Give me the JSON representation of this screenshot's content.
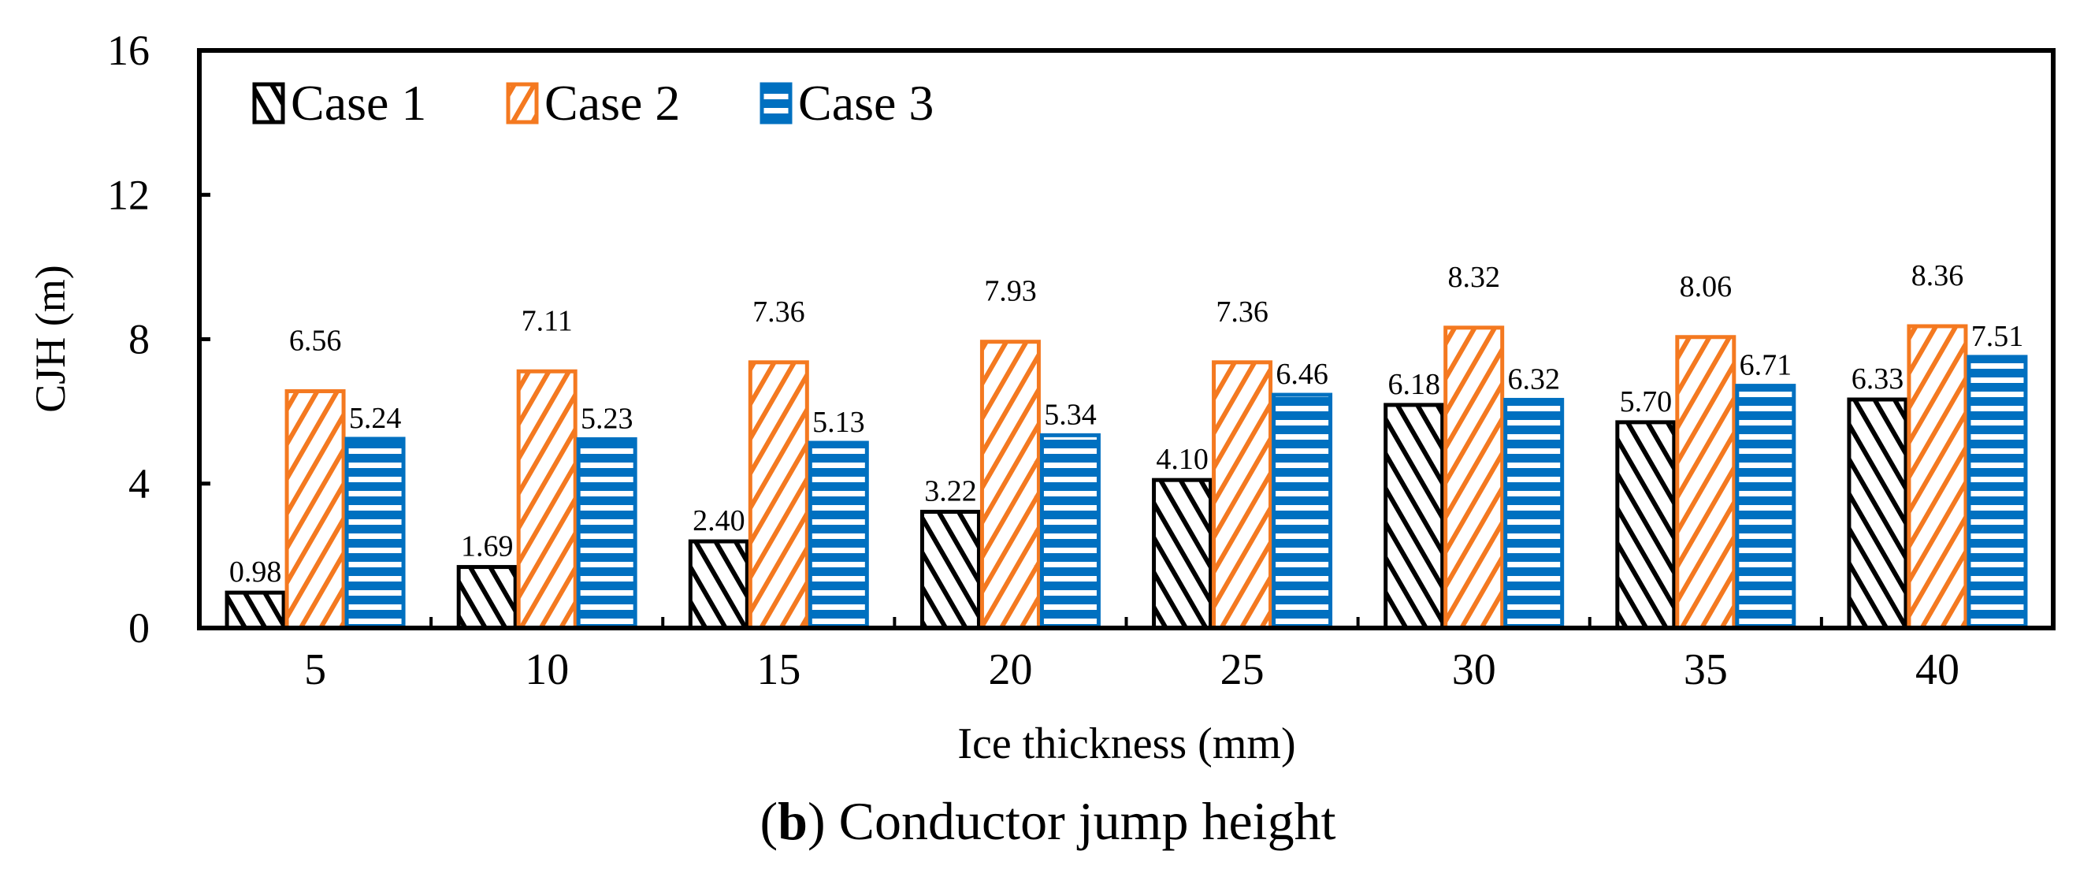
{
  "chart_data": {
    "type": "bar",
    "title": "",
    "caption_prefix": "(",
    "caption_letter": "b",
    "caption_rest": ") Conductor jump height",
    "xlabel": "Ice thickness (mm)",
    "ylabel": "CJH (m)",
    "ylim": [
      0,
      16
    ],
    "yticks": [
      "0",
      "4",
      "8",
      "12",
      "16"
    ],
    "categories": [
      "5",
      "10",
      "15",
      "20",
      "25",
      "30",
      "35",
      "40"
    ],
    "legend_position": "top-left",
    "series": [
      {
        "name": "Case 1",
        "color": "#000000",
        "pattern": "back-diagonal",
        "values": [
          0.98,
          1.69,
          2.4,
          3.22,
          4.1,
          6.18,
          5.7,
          6.33
        ],
        "labels": [
          "0.98",
          "1.69",
          "2.40",
          "3.22",
          "4.10",
          "6.18",
          "5.70",
          "6.33"
        ]
      },
      {
        "name": "Case 2",
        "color": "#F47920",
        "pattern": "forward-diagonal",
        "values": [
          6.56,
          7.11,
          7.36,
          7.93,
          7.36,
          8.32,
          8.06,
          8.36
        ],
        "labels": [
          "6.56",
          "7.11",
          "7.36",
          "7.93",
          "7.36",
          "8.32",
          "8.06",
          "8.36"
        ]
      },
      {
        "name": "Case 3",
        "color": "#0070C0",
        "pattern": "horizontal",
        "values": [
          5.24,
          5.23,
          5.13,
          5.34,
          6.46,
          6.32,
          6.71,
          7.51
        ],
        "labels": [
          "5.24",
          "5.23",
          "5.13",
          "5.34",
          "6.46",
          "6.32",
          "6.71",
          "7.51"
        ]
      }
    ]
  }
}
